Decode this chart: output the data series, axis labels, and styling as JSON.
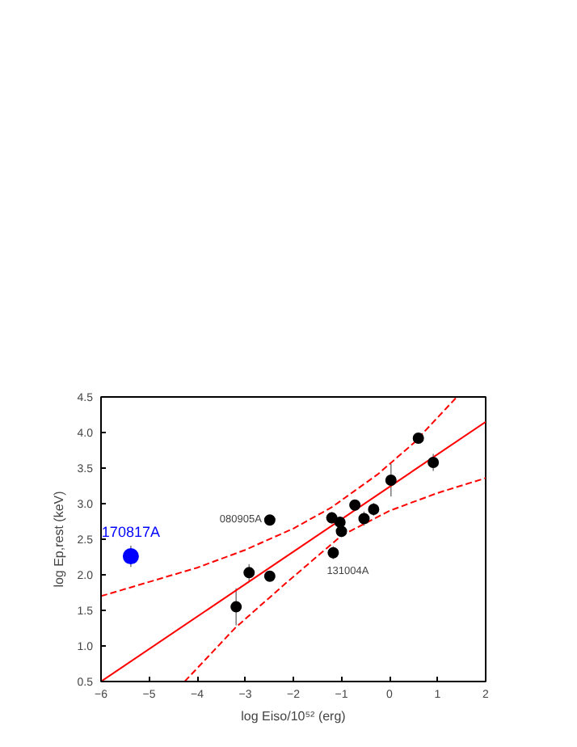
{
  "chart_data": {
    "type": "scatter",
    "xlabel": "log Eiso/10⁵² (erg)",
    "ylabel": "log Ep,rest (keV)",
    "xlim": [
      -6,
      2
    ],
    "ylim": [
      0.5,
      4.5
    ],
    "xticks": [
      -6,
      -5,
      -4,
      -3,
      -2,
      -1,
      0,
      1,
      2
    ],
    "yticks": [
      {
        "value": 0.5,
        "label": "0.5"
      },
      {
        "value": 1.0,
        "label": "1.0"
      },
      {
        "value": 1.5,
        "label": "1.5"
      },
      {
        "value": 2.0,
        "label": "2.0"
      },
      {
        "value": 2.5,
        "label": "2.5"
      },
      {
        "value": 3.0,
        "label": "3.0"
      },
      {
        "value": 3.5,
        "label": "3.5"
      },
      {
        "value": 4.0,
        "label": "4.0"
      },
      {
        "value": 4.5,
        "label": "4.5"
      }
    ],
    "grid": false,
    "series": [
      {
        "marker": "circle",
        "color": "#000000",
        "x": [
          -3.19,
          -2.92,
          -2.49,
          -2.49,
          -1.2,
          -1.17,
          -1.03,
          -1.0,
          -0.72,
          -0.53,
          -0.33,
          0.03,
          0.6,
          0.91
        ],
        "values": [
          1.55,
          2.03,
          2.77,
          1.98,
          2.8,
          2.31,
          2.74,
          2.61,
          2.98,
          2.79,
          2.92,
          3.33,
          3.92,
          3.58
        ],
        "errors": [
          0.26,
          0.12,
          0.05,
          0.05,
          0.08,
          0.09,
          0.08,
          0.08,
          0.06,
          0.1,
          0.09,
          0.23,
          0.05,
          0.12
        ]
      },
      {
        "marker": "circle",
        "name": "170817A",
        "color": "#0000ff",
        "x": [
          -5.38
        ],
        "values": [
          2.26
        ],
        "errors": [
          0.15
        ]
      },
      {
        "type": "line",
        "color": "#ff0000",
        "line_style": "solid",
        "x": [
          -6,
          2
        ],
        "values": [
          0.5,
          4.15
        ]
      },
      {
        "type": "line",
        "color": "#ff0000",
        "line_style": "dashed",
        "x": [
          -6,
          -4,
          -3,
          -2,
          -1.2,
          -0.25,
          0.5,
          1.4
        ],
        "values": [
          1.7,
          2.1,
          2.35,
          2.65,
          2.95,
          3.41,
          3.85,
          4.5
        ]
      },
      {
        "type": "line",
        "color": "#ff0000",
        "line_style": "dashed",
        "x": [
          -4.26,
          -3.2,
          -2.16,
          -1.0,
          0,
          1,
          2
        ],
        "values": [
          0.5,
          1.26,
          1.88,
          2.55,
          2.9,
          3.15,
          3.36
        ]
      }
    ],
    "annotations": [
      {
        "text": "080905A",
        "x": -2.49,
        "y": 2.77
      },
      {
        "text": "131004A",
        "x": -1.17,
        "y": 2.31
      }
    ]
  }
}
